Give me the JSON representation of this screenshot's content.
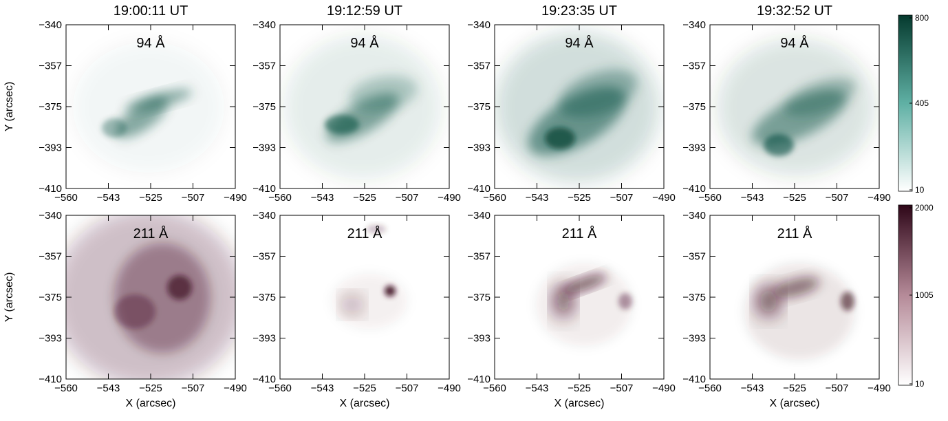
{
  "times": [
    "19:00:11 UT",
    "19:12:59 UT",
    "19:23:35 UT",
    "19:32:52 UT"
  ],
  "rows": [
    {
      "wavelength": "94 Å",
      "color": "#0a4a3c",
      "colorbar": {
        "ticks": [
          "800",
          "405",
          "10"
        ]
      }
    },
    {
      "wavelength": "211 Å",
      "color": "#3e0f22",
      "colorbar": {
        "ticks": [
          "2000",
          "1005",
          "10"
        ]
      }
    }
  ],
  "y_ticks": [
    "−340",
    "−357",
    "−375",
    "−393",
    "−410"
  ],
  "x_ticks": [
    "−560",
    "−543",
    "−525",
    "−507",
    "−490"
  ],
  "xlabel": "X (arcsec)",
  "ylabel": "Y (arcsec)"
}
